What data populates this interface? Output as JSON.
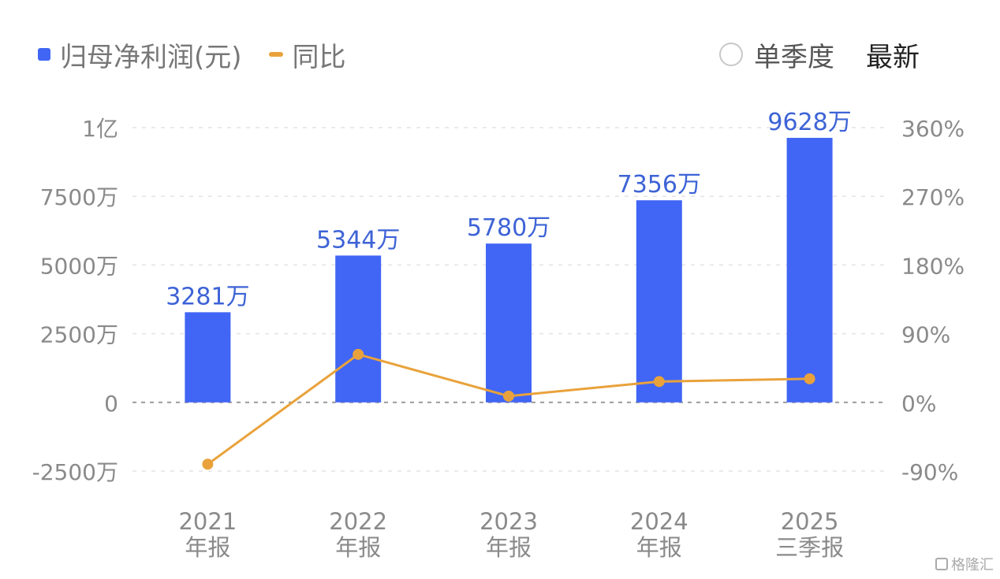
{
  "legend": {
    "bar_label": "归母净利润(元)",
    "line_label": "同比"
  },
  "controls": {
    "quarterly_label": "单季度",
    "latest_label": "最新"
  },
  "colors": {
    "bar": "#4166f5",
    "line": "#e9a23b",
    "bar_label": "#3d63d6",
    "axis_text": "#8a8a8a",
    "grid": "#e3e3e3",
    "zero_line": "#9a9a9a"
  },
  "watermark": "格隆汇",
  "chart_data": {
    "type": "bar",
    "categories": [
      [
        "2021",
        "年报"
      ],
      [
        "2022",
        "年报"
      ],
      [
        "2023",
        "年报"
      ],
      [
        "2024",
        "年报"
      ],
      [
        "2025",
        "三季报"
      ]
    ],
    "series": [
      {
        "name": "归母净利润(元)",
        "type": "bar",
        "axis": "left",
        "values": [
          32810000,
          53440000,
          57800000,
          73560000,
          96280000
        ],
        "labels": [
          "3281万",
          "5344万",
          "5780万",
          "7356万",
          "9628万"
        ]
      },
      {
        "name": "同比",
        "type": "line",
        "axis": "right",
        "values": [
          -81,
          62.9,
          8.2,
          27.3,
          30.9
        ]
      }
    ],
    "y_left": {
      "lim": [
        -25000000,
        100000000
      ],
      "ticks": [
        -25000000,
        0,
        25000000,
        50000000,
        75000000,
        100000000
      ],
      "tick_labels": [
        "-2500万",
        "0",
        "2500万",
        "5000万",
        "7500万",
        "1亿"
      ]
    },
    "y_right": {
      "lim": [
        -90,
        360
      ],
      "ticks": [
        -90,
        0,
        90,
        180,
        270,
        360
      ],
      "tick_labels": [
        "-90%",
        "0%",
        "90%",
        "180%",
        "270%",
        "360%"
      ]
    },
    "grid": true,
    "legend_position": "top-left"
  }
}
